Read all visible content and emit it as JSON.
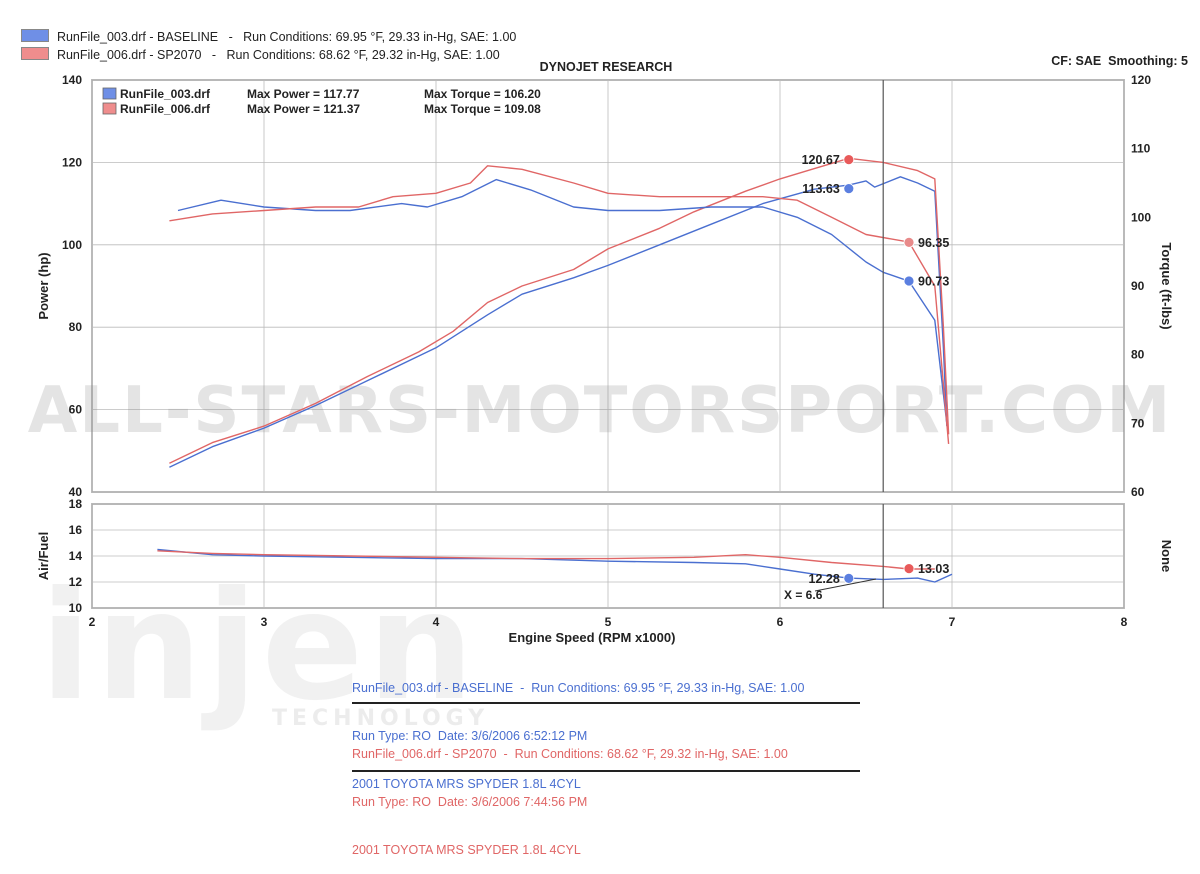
{
  "header": {
    "rows": [
      {
        "file": "RunFile_003.drf - BASELINE",
        "conditions": "Run Conditions: 69.95 °F, 29.33 in-Hg, SAE: 1.00",
        "color": "#4a6fd0"
      },
      {
        "file": "RunFile_006.drf - SP2070",
        "conditions": "Run Conditions: 68.62 °F, 29.32 in-Hg, SAE: 1.00",
        "color": "#e06666"
      }
    ]
  },
  "colors": {
    "blue": "#4a6fd0",
    "red": "#e06666",
    "blue_marker": "#5b7fe0",
    "red_marker": "#e85a5a",
    "grid": "#bbbbbb",
    "frame": "#888888"
  },
  "chart_data": [
    {
      "type": "line",
      "title": "DYNOJET RESEARCH",
      "corner_label": "CF: SAE  Smoothing: 5",
      "xlabel": "Engine Speed (RPM x1000)",
      "ylabel": "Power (hp)",
      "y2label": "Torque (ft-lbs)",
      "xlim": [
        2,
        8
      ],
      "ylim": [
        40,
        140
      ],
      "y2lim": [
        60,
        120
      ],
      "xticks": [
        "2",
        "3",
        "4",
        "5",
        "6",
        "7",
        "8"
      ],
      "yticks": [
        "40",
        "60",
        "80",
        "100",
        "120",
        "140"
      ],
      "y2ticks": [
        "60",
        "70",
        "80",
        "90",
        "100",
        "110",
        "120"
      ],
      "cursor_x": 6.6,
      "legend": [
        {
          "file": "RunFile_003.drf",
          "power": "Max Power = 117.77",
          "torque": "Max Torque = 106.20",
          "color": "#4a6fd0"
        },
        {
          "file": "RunFile_006.drf",
          "power": "Max Power = 121.37",
          "torque": "Max Torque = 109.08",
          "color": "#e06666"
        }
      ],
      "series": [
        {
          "name": "RunFile_003.drf",
          "measure": "power",
          "axis": "left",
          "color": "#4a6fd0",
          "points": [
            [
              2.45,
              46
            ],
            [
              2.7,
              51
            ],
            [
              3.0,
              55.5
            ],
            [
              3.3,
              61
            ],
            [
              3.6,
              67
            ],
            [
              3.9,
              73
            ],
            [
              4.0,
              75
            ],
            [
              4.3,
              83
            ],
            [
              4.5,
              88
            ],
            [
              4.8,
              92
            ],
            [
              5.0,
              95
            ],
            [
              5.3,
              100
            ],
            [
              5.6,
              105
            ],
            [
              5.9,
              110
            ],
            [
              6.2,
              113.5
            ],
            [
              6.4,
              114.5
            ],
            [
              6.5,
              115.5
            ],
            [
              6.55,
              114
            ],
            [
              6.7,
              116.5
            ],
            [
              6.8,
              115
            ],
            [
              6.9,
              113
            ],
            [
              6.95,
              75
            ],
            [
              6.97,
              56
            ]
          ]
        },
        {
          "name": "RunFile_006.drf",
          "measure": "power",
          "axis": "left",
          "color": "#e06666",
          "points": [
            [
              2.45,
              47
            ],
            [
              2.7,
              52
            ],
            [
              3.0,
              56
            ],
            [
              3.3,
              61.5
            ],
            [
              3.6,
              68
            ],
            [
              3.9,
              74
            ],
            [
              4.1,
              79
            ],
            [
              4.3,
              86
            ],
            [
              4.5,
              90
            ],
            [
              4.8,
              94
            ],
            [
              5.0,
              99
            ],
            [
              5.3,
              104
            ],
            [
              5.5,
              108
            ],
            [
              5.8,
              113
            ],
            [
              6.0,
              116
            ],
            [
              6.2,
              118.5
            ],
            [
              6.4,
              121
            ],
            [
              6.6,
              120
            ],
            [
              6.8,
              118
            ],
            [
              6.9,
              116
            ],
            [
              6.95,
              80
            ],
            [
              6.98,
              54
            ]
          ]
        },
        {
          "name": "RunFile_003.drf",
          "measure": "torque",
          "axis": "right",
          "color": "#4a6fd0",
          "points": [
            [
              2.5,
              101
            ],
            [
              2.75,
              102.5
            ],
            [
              3.0,
              101.5
            ],
            [
              3.3,
              101
            ],
            [
              3.5,
              101
            ],
            [
              3.8,
              102
            ],
            [
              3.95,
              101.5
            ],
            [
              4.15,
              103
            ],
            [
              4.35,
              105.5
            ],
            [
              4.55,
              104
            ],
            [
              4.8,
              101.5
            ],
            [
              5.0,
              101
            ],
            [
              5.3,
              101
            ],
            [
              5.6,
              101.5
            ],
            [
              5.9,
              101.5
            ],
            [
              6.1,
              100
            ],
            [
              6.3,
              97.5
            ],
            [
              6.5,
              93.5
            ],
            [
              6.6,
              92
            ],
            [
              6.75,
              90.7
            ],
            [
              6.9,
              85
            ],
            [
              6.97,
              70
            ]
          ]
        },
        {
          "name": "RunFile_006.drf",
          "measure": "torque",
          "axis": "right",
          "color": "#e06666",
          "points": [
            [
              2.45,
              99.5
            ],
            [
              2.7,
              100.5
            ],
            [
              3.0,
              101
            ],
            [
              3.3,
              101.5
            ],
            [
              3.55,
              101.5
            ],
            [
              3.75,
              103
            ],
            [
              4.0,
              103.5
            ],
            [
              4.2,
              105
            ],
            [
              4.3,
              107.5
            ],
            [
              4.5,
              107
            ],
            [
              4.8,
              105
            ],
            [
              5.0,
              103.5
            ],
            [
              5.3,
              103
            ],
            [
              5.6,
              103
            ],
            [
              5.9,
              103
            ],
            [
              6.1,
              102.5
            ],
            [
              6.3,
              100
            ],
            [
              6.5,
              97.5
            ],
            [
              6.75,
              96.4
            ],
            [
              6.9,
              90
            ],
            [
              6.98,
              67
            ]
          ]
        }
      ],
      "annotations": [
        {
          "text": "120.67",
          "x": 6.4,
          "y": 120.67,
          "axis": "left",
          "color": "#e85a5a",
          "side": "left"
        },
        {
          "text": "113.63",
          "x": 6.4,
          "y": 113.63,
          "axis": "left",
          "color": "#5b7fe0",
          "side": "left"
        },
        {
          "text": "96.35",
          "x": 6.75,
          "y": 96.35,
          "axis": "right",
          "color": "#e88a8a",
          "side": "right"
        },
        {
          "text": "90.73",
          "x": 6.75,
          "y": 90.73,
          "axis": "right",
          "color": "#5b7fe0",
          "side": "right"
        }
      ]
    },
    {
      "type": "line",
      "ylabel": "Air/Fuel",
      "y2label": "None",
      "xlim": [
        2,
        8
      ],
      "ylim": [
        10,
        18
      ],
      "yticks": [
        "10",
        "12",
        "14",
        "16",
        "18"
      ],
      "cursor_x": 6.6,
      "cursor_label": "X = 6.6",
      "series": [
        {
          "name": "RunFile_003.drf",
          "measure": "air_fuel",
          "color": "#4a6fd0",
          "points": [
            [
              2.38,
              14.5
            ],
            [
              2.7,
              14.1
            ],
            [
              3.0,
              14.0
            ],
            [
              3.5,
              13.9
            ],
            [
              4.0,
              13.8
            ],
            [
              4.5,
              13.8
            ],
            [
              5.0,
              13.6
            ],
            [
              5.5,
              13.5
            ],
            [
              5.8,
              13.4
            ],
            [
              6.0,
              13.0
            ],
            [
              6.2,
              12.6
            ],
            [
              6.4,
              12.3
            ],
            [
              6.6,
              12.2
            ],
            [
              6.8,
              12.3
            ],
            [
              6.9,
              12.0
            ],
            [
              7.0,
              12.6
            ]
          ]
        },
        {
          "name": "RunFile_006.drf",
          "measure": "air_fuel",
          "color": "#e06666",
          "points": [
            [
              2.38,
              14.4
            ],
            [
              2.7,
              14.2
            ],
            [
              3.0,
              14.1
            ],
            [
              3.5,
              14.0
            ],
            [
              4.0,
              13.9
            ],
            [
              4.5,
              13.8
            ],
            [
              5.0,
              13.8
            ],
            [
              5.5,
              13.9
            ],
            [
              5.8,
              14.1
            ],
            [
              6.0,
              13.9
            ],
            [
              6.3,
              13.5
            ],
            [
              6.6,
              13.2
            ],
            [
              6.75,
              13.0
            ],
            [
              6.9,
              13.0
            ]
          ]
        }
      ],
      "annotations": [
        {
          "text": "13.03",
          "x": 6.75,
          "y": 13.03,
          "color": "#e85a5a",
          "side": "right"
        },
        {
          "text": "12.28",
          "x": 6.4,
          "y": 12.28,
          "color": "#5b7fe0",
          "side": "left"
        }
      ]
    }
  ],
  "run_info": [
    {
      "lines": [
        "RunFile_003.drf - BASELINE  -  Run Conditions: 69.95 °F, 29.33 in-Hg, SAE: 1.00",
        "Run Type: RO  Date: 3/6/2006 6:52:12 PM",
        "2001 TOYOTA MRS SPYDER 1.8L 4CYL"
      ],
      "color": "#4a6fd0"
    },
    {
      "lines": [
        "RunFile_006.drf - SP2070  -  Run Conditions: 68.62 °F, 29.32 in-Hg, SAE: 1.00",
        "Run Type: RO  Date: 3/6/2006 7:44:56 PM",
        "2001 TOYOTA MRS SPYDER 1.8L 4CYL"
      ],
      "color": "#e06666"
    }
  ],
  "watermarks": {
    "main": "ALL-STARS-MOTORSPORT.COM",
    "logo": "injen",
    "logo_sub": "TECHNOLOGY"
  }
}
